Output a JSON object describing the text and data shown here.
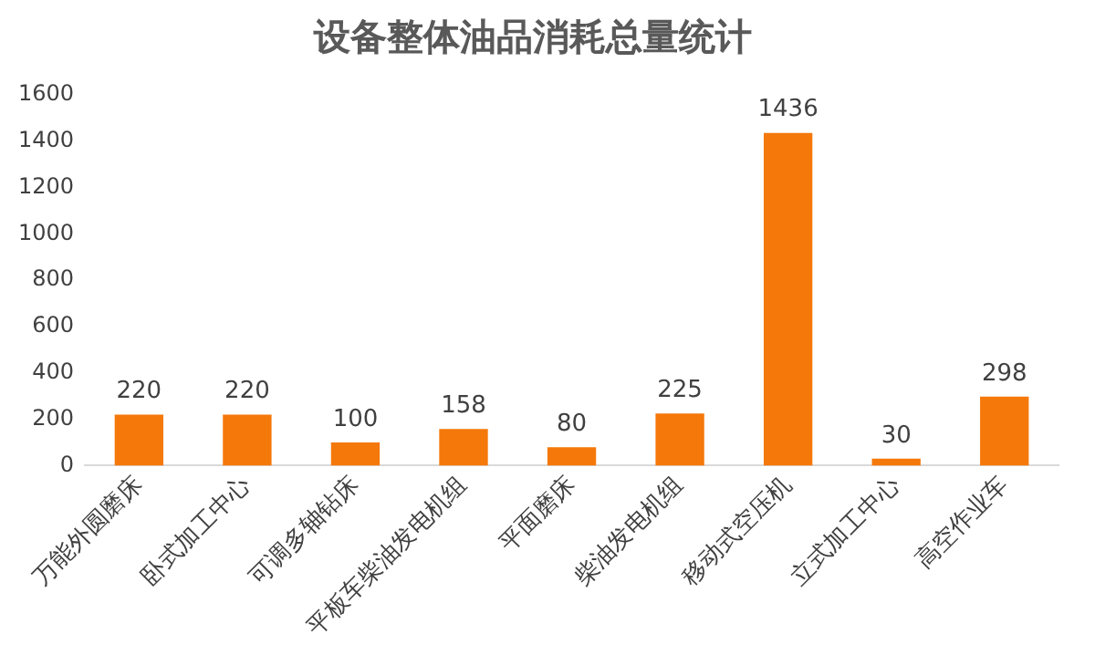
{
  "chart_data": {
    "type": "bar",
    "title": "设备整体油品消耗总量统计",
    "categories": [
      "万能外圆磨床",
      "卧式加工中心",
      "可调多轴钻床",
      "平板车柴油发电机组",
      "平面磨床",
      "柴油发电机组",
      "移动式空压机",
      "立式加工中心",
      "高空作业车"
    ],
    "values": [
      220,
      220,
      100,
      158,
      80,
      225,
      1436,
      30,
      298
    ],
    "color": "#f5780a",
    "ylim": [
      0,
      1600
    ],
    "yticks": [
      0,
      200,
      400,
      600,
      800,
      1000,
      1200,
      1400,
      1600
    ],
    "grid": false,
    "data_labels": true
  }
}
